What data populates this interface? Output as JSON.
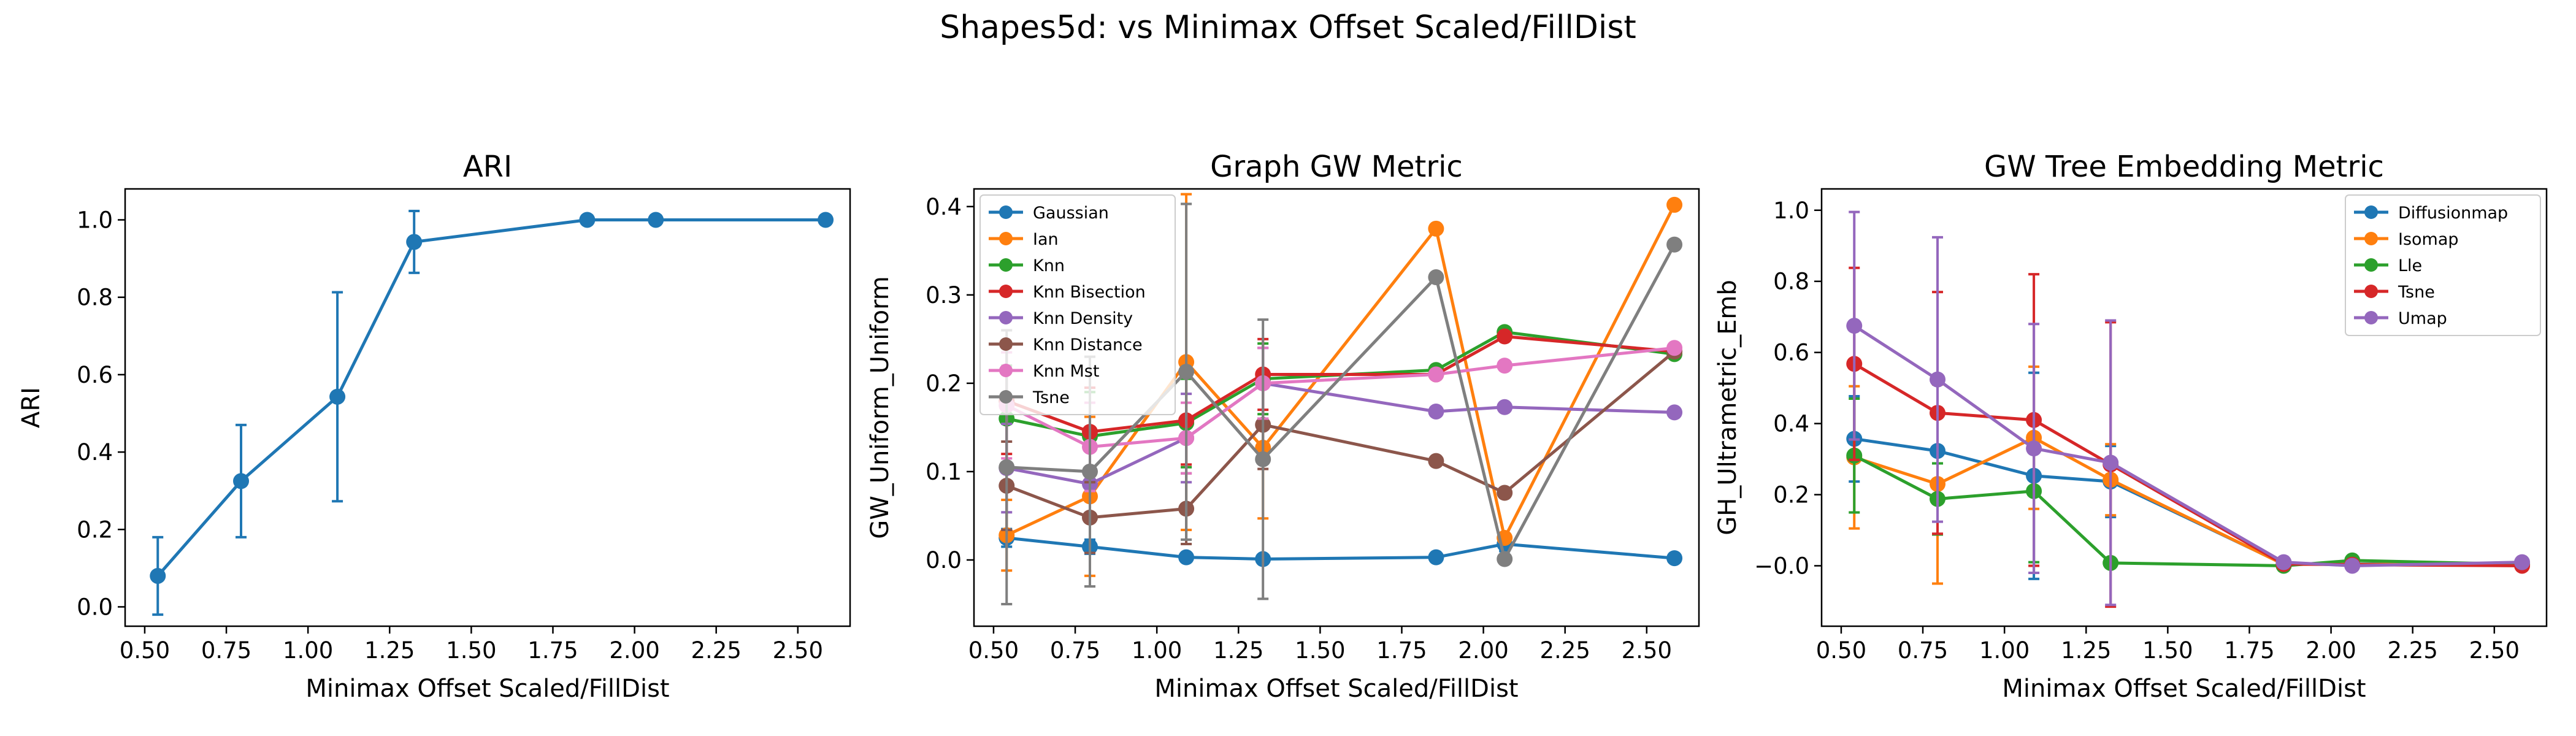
{
  "suptitle": "Shapes5d: vs Minimax Offset Scaled/FillDist",
  "chart_data": [
    {
      "type": "line",
      "title": "ARI",
      "xlabel": "Minimax Offset Scaled/FillDist",
      "ylabel": "ARI",
      "xlim": [
        0.44,
        2.66
      ],
      "ylim": [
        -0.05,
        1.08
      ],
      "xticks": [
        "0.50",
        "0.75",
        "1.00",
        "1.25",
        "1.50",
        "1.75",
        "2.00",
        "2.25",
        "2.50"
      ],
      "yticks": [
        "0.0",
        "0.2",
        "0.4",
        "0.6",
        "0.8",
        "1.0"
      ],
      "x": [
        0.54,
        0.795,
        1.09,
        1.325,
        1.855,
        2.065,
        2.585
      ],
      "legend": null,
      "series": [
        {
          "color": "#1f77b4",
          "values": [
            0.08,
            0.325,
            0.543,
            0.943,
            1.0,
            1.0,
            1.0
          ],
          "errors": [
            0.1,
            0.145,
            0.27,
            0.08,
            0.0,
            0.0,
            0.0
          ]
        }
      ]
    },
    {
      "type": "line",
      "title": "Graph GW Metric",
      "xlabel": "Minimax Offset Scaled/FillDist",
      "ylabel": "GW_Uniform_Uniform",
      "xlim": [
        0.44,
        2.66
      ],
      "ylim": [
        -0.075,
        0.42
      ],
      "xticks": [
        "0.50",
        "0.75",
        "1.00",
        "1.25",
        "1.50",
        "1.75",
        "2.00",
        "2.25",
        "2.50"
      ],
      "yticks": [
        "0.0",
        "0.1",
        "0.2",
        "0.3",
        "0.4"
      ],
      "x": [
        0.54,
        0.795,
        1.09,
        1.325,
        1.855,
        2.065,
        2.585
      ],
      "legend": "top-left",
      "series": [
        {
          "name": "Gaussian",
          "color": "#1f77b4",
          "values": [
            0.025,
            0.015,
            0.003,
            0.001,
            0.003,
            0.018,
            0.002
          ],
          "errors": [
            0.01,
            0.008,
            0.004,
            0.002,
            0.003,
            0.008,
            0.002
          ]
        },
        {
          "name": "Ian",
          "color": "#ff7f0e",
          "values": [
            0.028,
            0.072,
            0.224,
            0.127,
            0.375,
            0.025,
            0.402
          ],
          "errors": [
            0.04,
            0.09,
            0.19,
            0.08,
            0.0,
            0.0,
            0.0
          ]
        },
        {
          "name": "Knn",
          "color": "#2ca02c",
          "values": [
            0.16,
            0.14,
            0.155,
            0.205,
            0.215,
            0.258,
            0.233
          ],
          "errors": [
            0.06,
            0.05,
            0.05,
            0.04,
            0.0,
            0.0,
            0.0
          ]
        },
        {
          "name": "Knn Bisection",
          "color": "#d62728",
          "values": [
            0.18,
            0.145,
            0.158,
            0.21,
            0.21,
            0.253,
            0.236
          ],
          "errors": [
            0.06,
            0.05,
            0.05,
            0.04,
            0.0,
            0.0,
            0.0
          ]
        },
        {
          "name": "Knn Density",
          "color": "#9467bd",
          "values": [
            0.104,
            0.086,
            0.138,
            0.2,
            0.168,
            0.173,
            0.167
          ],
          "errors": [
            0.05,
            0.04,
            0.05,
            0.04,
            0.0,
            0.0,
            0.0
          ]
        },
        {
          "name": "Knn Distance",
          "color": "#8c564b",
          "values": [
            0.084,
            0.048,
            0.058,
            0.153,
            0.112,
            0.076,
            0.236
          ],
          "errors": [
            0.05,
            0.04,
            0.04,
            0.05,
            0.0,
            0.0,
            0.0
          ]
        },
        {
          "name": "Knn Mst",
          "color": "#e377c2",
          "values": [
            0.175,
            0.128,
            0.138,
            0.2,
            0.21,
            0.22,
            0.24
          ],
          "errors": [
            0.06,
            0.05,
            0.04,
            0.04,
            0.0,
            0.0,
            0.0
          ]
        },
        {
          "name": "Tsne",
          "color": "#7f7f7f",
          "values": [
            0.105,
            0.1,
            0.213,
            0.114,
            0.32,
            0.001,
            0.357
          ],
          "errors": [
            0.155,
            0.13,
            0.19,
            0.158,
            0.0,
            0.0,
            0.0
          ]
        }
      ]
    },
    {
      "type": "line",
      "title": "GW Tree Embedding Metric",
      "xlabel": "Minimax Offset Scaled/FillDist",
      "ylabel": "GH_Ultrametric_Emb",
      "xlim": [
        0.44,
        2.66
      ],
      "ylim": [
        -0.17,
        1.06
      ],
      "xticks": [
        "0.50",
        "0.75",
        "1.00",
        "1.25",
        "1.50",
        "1.75",
        "2.00",
        "2.25",
        "2.50"
      ],
      "yticks": [
        "−0.0",
        "0.2",
        "0.4",
        "0.6",
        "0.8",
        "1.0"
      ],
      "x": [
        0.54,
        0.795,
        1.09,
        1.325,
        1.855,
        2.065,
        2.585
      ],
      "legend": "top-right",
      "series": [
        {
          "name": "Diffusionmap",
          "color": "#1f77b4",
          "values": [
            0.357,
            0.323,
            0.253,
            0.237,
            0.005,
            0.005,
            0.005
          ],
          "errors": [
            0.12,
            0.1,
            0.29,
            0.1,
            0.0,
            0.0,
            0.0
          ]
        },
        {
          "name": "Isomap",
          "color": "#ff7f0e",
          "values": [
            0.305,
            0.23,
            0.36,
            0.242,
            0.004,
            0.004,
            0.004
          ],
          "errors": [
            0.2,
            0.28,
            0.2,
            0.1,
            0.0,
            0.0,
            0.0
          ]
        },
        {
          "name": "Lle",
          "color": "#2ca02c",
          "values": [
            0.31,
            0.188,
            0.21,
            0.008,
            0.0,
            0.015,
            0.004
          ],
          "errors": [
            0.16,
            0.1,
            0.2,
            0.01,
            0.0,
            0.0,
            0.0
          ]
        },
        {
          "name": "Tsne",
          "color": "#d62728",
          "values": [
            0.568,
            0.43,
            0.41,
            0.285,
            0.005,
            0.003,
            0.0
          ],
          "errors": [
            0.27,
            0.34,
            0.41,
            0.4,
            0.0,
            0.0,
            0.0
          ]
        },
        {
          "name": "Umap",
          "color": "#9467bd",
          "values": [
            0.675,
            0.524,
            0.33,
            0.29,
            0.01,
            0.0,
            0.01
          ],
          "errors": [
            0.32,
            0.4,
            0.35,
            0.4,
            0.0,
            0.0,
            0.0
          ]
        }
      ]
    }
  ]
}
